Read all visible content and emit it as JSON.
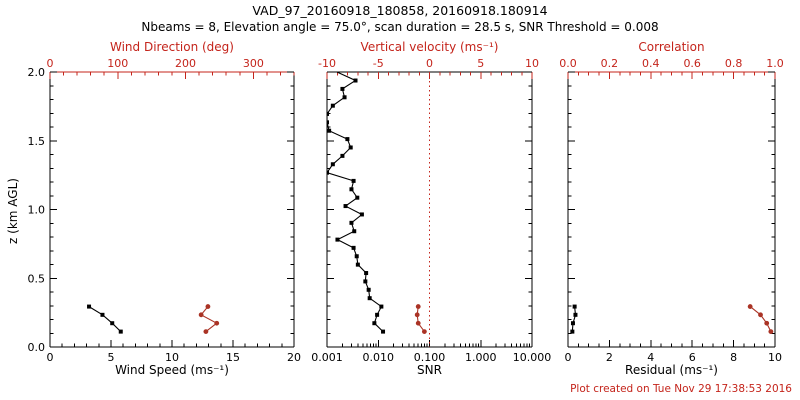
{
  "title": "VAD_97_20160918_180858, 20160918.180914",
  "subtitle": "Nbeams = 8, Elevation angle = 75.0°, scan duration = 28.5 s, SNR Threshold = 0.008",
  "footer": "Plot created on Tue Nov 29 17:38:53 2016",
  "colors": {
    "axis_red": "#c4241b",
    "series_red": "#aa3325",
    "black": "#000000",
    "background": "#ffffff"
  },
  "chart_data": [
    {
      "type": "line",
      "name": "wind-speed-direction-profile",
      "y_axis": {
        "label": "z (km AGL)",
        "lim": [
          0,
          2
        ],
        "ticks": [
          0.0,
          0.5,
          1.0,
          1.5,
          2.0
        ],
        "tick_labels": [
          "0.0",
          "0.5",
          "1.0",
          "1.5",
          "2.0"
        ],
        "minor": 0.1,
        "show_labels": true
      },
      "bottom_axis": {
        "label": "Wind Speed (ms⁻¹)",
        "lim": [
          0,
          20
        ],
        "ticks": [
          0,
          5,
          10,
          15,
          20
        ],
        "tick_labels": [
          "0",
          "5",
          "10",
          "15",
          "20"
        ],
        "minor": 1,
        "color": "#000000"
      },
      "top_axis": {
        "label": "Wind Direction (deg)",
        "lim": [
          0,
          360
        ],
        "ticks": [
          0,
          100,
          200,
          300
        ],
        "tick_labels": [
          "0",
          "100",
          "200",
          "300"
        ],
        "minor": 20,
        "color": "#c4241b",
        "line_color": "#c4241b"
      },
      "series": [
        {
          "name": "wind-speed",
          "axis": "bottom",
          "color": "#000000",
          "marker": "square",
          "points": [
            [
              5.8,
              0.112
            ],
            [
              5.1,
              0.173
            ],
            [
              4.3,
              0.234
            ],
            [
              3.2,
              0.294
            ]
          ]
        },
        {
          "name": "wind-direction",
          "axis": "top",
          "color": "#aa3325",
          "marker": "circle",
          "points": [
            [
              230,
              0.112
            ],
            [
              246,
              0.173
            ],
            [
              223,
              0.234
            ],
            [
              233,
              0.294
            ]
          ]
        }
      ]
    },
    {
      "type": "line",
      "name": "snr-vertical-velocity-profile",
      "y_axis": {
        "lim": [
          0,
          2
        ],
        "ticks": [
          0.0,
          0.5,
          1.0,
          1.5,
          2.0
        ],
        "tick_labels": [
          "0.0",
          "0.5",
          "1.0",
          "1.5",
          "2.0"
        ],
        "minor": 0.1,
        "show_labels": false
      },
      "bottom_axis": {
        "label": "SNR",
        "scale": "log",
        "lim": [
          0.001,
          10
        ],
        "ticks": [
          0.001,
          0.01,
          0.1,
          1,
          10
        ],
        "tick_labels": [
          "0.001",
          "0.010",
          "0.100",
          "1.000",
          "10.000"
        ],
        "color": "#000000"
      },
      "top_axis": {
        "label": "Vertical velocity (ms⁻¹)",
        "lim": [
          -10,
          10
        ],
        "ticks": [
          -10,
          -5,
          0,
          5,
          10
        ],
        "tick_labels": [
          "-10",
          "-5",
          "0",
          "5",
          "10"
        ],
        "minor": 1,
        "color": "#c4241b",
        "line_color": "#000000"
      },
      "ref_line": {
        "axis": "top",
        "value": 0,
        "style": "dotted",
        "color": "#c4241b"
      },
      "series": [
        {
          "name": "snr",
          "axis": "bottom",
          "color": "#000000",
          "marker": "square",
          "points": [
            [
              0.0124,
              0.112
            ],
            [
              0.0084,
              0.173
            ],
            [
              0.0095,
              0.234
            ],
            [
              0.0115,
              0.294
            ],
            [
              0.0068,
              0.355
            ],
            [
              0.0065,
              0.416
            ],
            [
              0.0056,
              0.477
            ],
            [
              0.0058,
              0.538
            ],
            [
              0.004,
              0.599
            ],
            [
              0.0038,
              0.66
            ],
            [
              0.0033,
              0.721
            ],
            [
              0.0016,
              0.781
            ],
            [
              0.0034,
              0.842
            ],
            [
              0.003,
              0.903
            ],
            [
              0.0048,
              0.964
            ],
            [
              0.0023,
              1.025
            ],
            [
              0.0039,
              1.086
            ],
            [
              0.003,
              1.147
            ],
            [
              0.0033,
              1.208
            ],
            [
              0.001,
              1.268
            ],
            [
              0.0013,
              1.329
            ],
            [
              0.002,
              1.39
            ],
            [
              0.0029,
              1.451
            ],
            [
              0.0025,
              1.512
            ],
            [
              0.0011,
              1.573
            ],
            [
              0.001,
              1.634
            ],
            [
              0.001,
              1.695
            ],
            [
              0.0013,
              1.755
            ],
            [
              0.0022,
              1.816
            ],
            [
              0.002,
              1.877
            ],
            [
              0.0036,
              1.938
            ],
            [
              0.0012,
              2.02
            ]
          ]
        },
        {
          "name": "vertical-velocity",
          "axis": "top",
          "color": "#aa3325",
          "marker": "circle",
          "points": [
            [
              -0.5,
              0.112
            ],
            [
              -1.1,
              0.173
            ],
            [
              -1.2,
              0.234
            ],
            [
              -1.1,
              0.294
            ]
          ]
        }
      ]
    },
    {
      "type": "line",
      "name": "residual-correlation-profile",
      "y_axis": {
        "lim": [
          0,
          2
        ],
        "ticks": [
          0.0,
          0.5,
          1.0,
          1.5,
          2.0
        ],
        "tick_labels": [
          "0.0",
          "0.5",
          "1.0",
          "1.5",
          "2.0"
        ],
        "minor": 0.1,
        "show_labels": false
      },
      "bottom_axis": {
        "label": "Residual (ms⁻¹)",
        "lim": [
          0,
          10
        ],
        "ticks": [
          0,
          2,
          4,
          6,
          8,
          10
        ],
        "tick_labels": [
          "0",
          "2",
          "4",
          "6",
          "8",
          "10"
        ],
        "minor": 0.5,
        "color": "#000000"
      },
      "top_axis": {
        "label": "Correlation",
        "lim": [
          0,
          1
        ],
        "ticks": [
          0.0,
          0.2,
          0.4,
          0.6,
          0.8,
          1.0
        ],
        "tick_labels": [
          "0.0",
          "0.2",
          "0.4",
          "0.6",
          "0.8",
          "1.0"
        ],
        "minor": 0.05,
        "color": "#c4241b",
        "line_color": "#c4241b"
      },
      "series": [
        {
          "name": "residual",
          "axis": "bottom",
          "color": "#000000",
          "marker": "square",
          "points": [
            [
              0.21,
              0.112
            ],
            [
              0.24,
              0.173
            ],
            [
              0.36,
              0.234
            ],
            [
              0.32,
              0.294
            ]
          ]
        },
        {
          "name": "correlation",
          "axis": "top",
          "color": "#aa3325",
          "marker": "circle",
          "points": [
            [
              0.98,
              0.112
            ],
            [
              0.96,
              0.173
            ],
            [
              0.93,
              0.234
            ],
            [
              0.88,
              0.294
            ]
          ]
        }
      ]
    }
  ]
}
